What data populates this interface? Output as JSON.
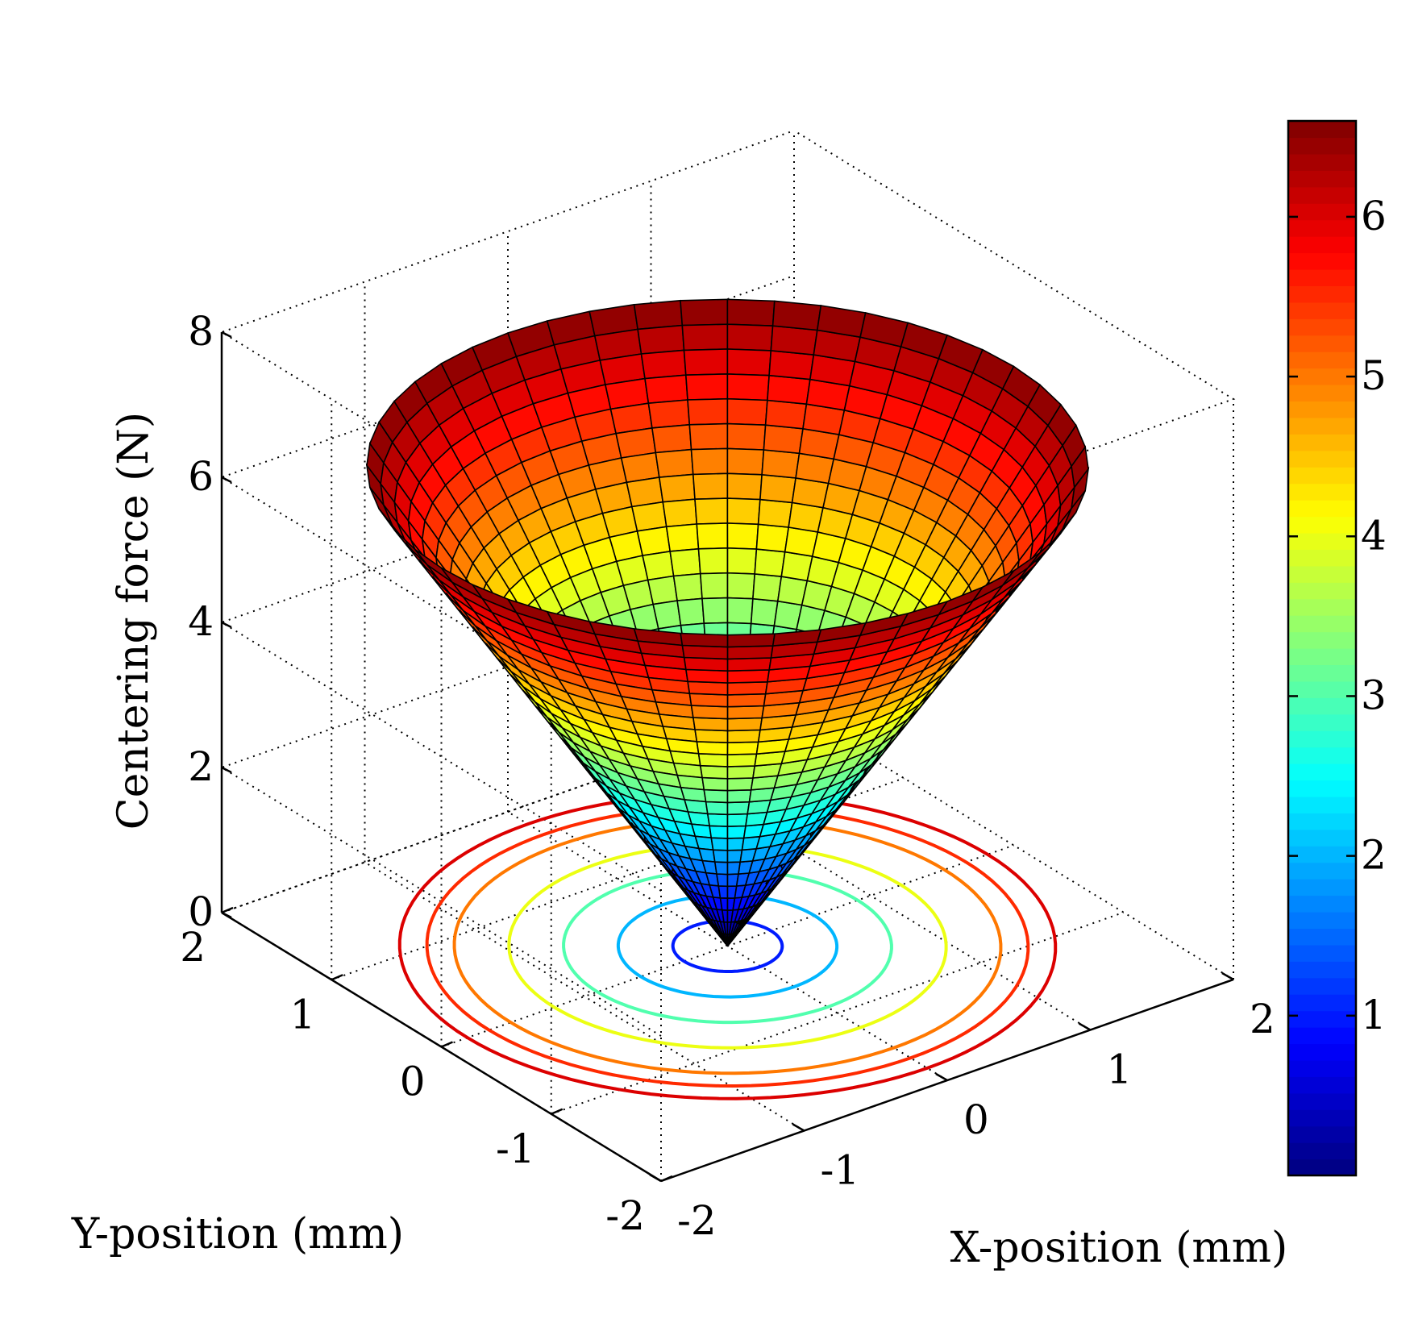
{
  "chart_data": {
    "type": "surface3d",
    "surface": "cone",
    "model": "force = 3.3 * sqrt(x^2 + y^2)",
    "xlabel": "X-position (mm)",
    "ylabel": "Y-position (mm)",
    "zlabel": "Centering force (N)",
    "xlim": [
      -2,
      2
    ],
    "ylim": [
      -2,
      2
    ],
    "zlim": [
      0,
      8
    ],
    "x_ticks": [
      "-2",
      "-1",
      "0",
      "1",
      "2"
    ],
    "y_ticks": [
      "-2",
      "-1",
      "0",
      "1",
      "2"
    ],
    "z_ticks": [
      "0",
      "2",
      "4",
      "6",
      "8"
    ],
    "radius_max_mm": 2,
    "force_max_N": 6.6,
    "contour_levels_N": [
      1,
      2,
      3,
      4,
      5,
      5.5,
      6
    ],
    "colorbar": {
      "colormap": "jet",
      "range": [
        0,
        6.6
      ],
      "ticks": [
        "1",
        "2",
        "3",
        "4",
        "5",
        "6"
      ]
    },
    "grid": true
  }
}
